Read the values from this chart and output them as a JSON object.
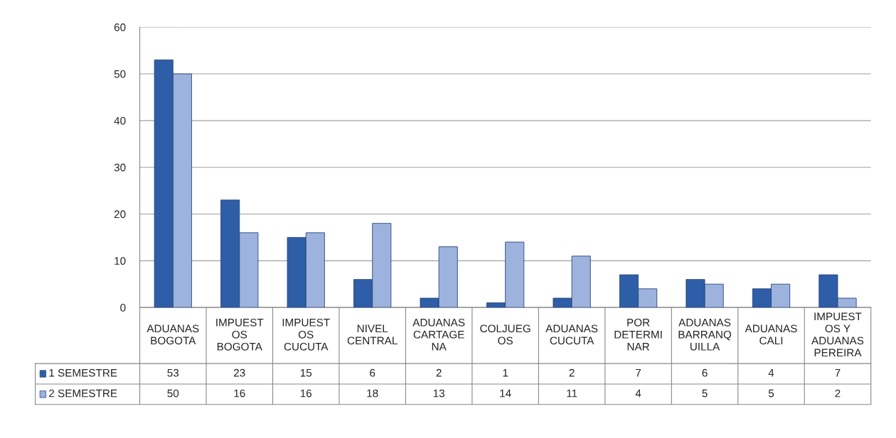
{
  "chart_data": {
    "type": "bar",
    "categories": [
      "ADUANAS\nBOGOTA",
      "IMPUEST\nOS\nBOGOTA",
      "IMPUEST\nOS\nCUCUTA",
      "NIVEL\nCENTRAL",
      "ADUANAS\nCARTAGE\nNA",
      "COLJUEG\nOS",
      "ADUANAS\nCUCUTA",
      "POR\nDETERMI\nNAR",
      "ADUANAS\nBARRANQ\nUILLA",
      "ADUANAS\nCALI",
      "IMPUEST\nOS Y\nADUANAS\nPEREIRA"
    ],
    "series": [
      {
        "name": "1 SEMESTRE",
        "color": "#2f5ea8",
        "values": [
          53,
          23,
          15,
          6,
          2,
          1,
          2,
          7,
          6,
          4,
          7
        ]
      },
      {
        "name": "2 SEMESTRE",
        "color": "#9db2dc",
        "values": [
          50,
          16,
          16,
          18,
          13,
          14,
          11,
          4,
          5,
          5,
          2
        ]
      }
    ],
    "ylim": [
      0,
      60
    ],
    "yticks": [
      0,
      10,
      20,
      30,
      40,
      50,
      60
    ],
    "grid": "y",
    "data_labels": true,
    "legend": "bottom left"
  }
}
